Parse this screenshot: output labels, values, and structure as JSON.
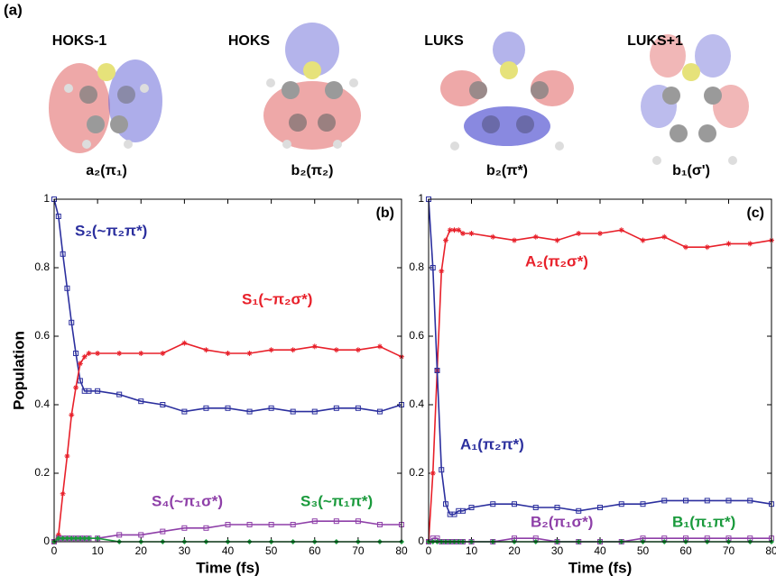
{
  "panel_a": {
    "label": "(a)",
    "orbitals": [
      {
        "name": "HOKS-1",
        "symmetry": "a₂(π₁)"
      },
      {
        "name": "HOKS",
        "symmetry": "b₂(π₂)"
      },
      {
        "name": "LUKS",
        "symmetry": "b₂(π*)"
      },
      {
        "name": "LUKS+1",
        "symmetry": "b₁(σ')"
      }
    ]
  },
  "chart_data": [
    {
      "type": "line",
      "panel_label": "(b)",
      "xlabel": "Time (fs)",
      "ylabel": "Population",
      "x": [
        0,
        1,
        2,
        3,
        4,
        5,
        6,
        7,
        8,
        10,
        15,
        20,
        25,
        30,
        35,
        40,
        45,
        50,
        55,
        60,
        65,
        70,
        75,
        80
      ],
      "xlim": [
        0,
        80
      ],
      "xticks": [
        0,
        10,
        20,
        30,
        40,
        50,
        60,
        70,
        80
      ],
      "ylim": [
        0,
        1
      ],
      "yticks": [
        0,
        0.2,
        0.4,
        0.6,
        0.8,
        1
      ],
      "series": [
        {
          "name": "S₂(~π₂π*)",
          "color": "#2b2f9e",
          "marker": "square",
          "values": [
            1.0,
            0.95,
            0.84,
            0.74,
            0.64,
            0.55,
            0.47,
            0.44,
            0.44,
            0.44,
            0.43,
            0.41,
            0.4,
            0.38,
            0.39,
            0.39,
            0.38,
            0.39,
            0.38,
            0.38,
            0.39,
            0.39,
            0.38,
            0.4
          ]
        },
        {
          "name": "S₁(~π₂σ*)",
          "color": "#e8202a",
          "marker": "asterisk",
          "values": [
            0,
            0.02,
            0.14,
            0.25,
            0.37,
            0.45,
            0.52,
            0.54,
            0.55,
            0.55,
            0.55,
            0.55,
            0.55,
            0.58,
            0.56,
            0.55,
            0.55,
            0.56,
            0.56,
            0.57,
            0.56,
            0.56,
            0.57,
            0.54
          ]
        },
        {
          "name": "S₄(~π₁σ*)",
          "color": "#8e3fa8",
          "marker": "square",
          "values": [
            0,
            0.01,
            0.01,
            0.01,
            0.01,
            0.01,
            0.01,
            0.01,
            0.01,
            0.01,
            0.02,
            0.02,
            0.03,
            0.04,
            0.04,
            0.05,
            0.05,
            0.05,
            0.05,
            0.06,
            0.06,
            0.06,
            0.05,
            0.05
          ]
        },
        {
          "name": "S₃(~π₁π*)",
          "color": "#1a9a3c",
          "marker": "diamond",
          "values": [
            0,
            0.01,
            0.01,
            0.01,
            0.01,
            0.01,
            0.01,
            0.01,
            0.01,
            0.01,
            0,
            0,
            0,
            0,
            0,
            0,
            0,
            0,
            0,
            0,
            0,
            0,
            0,
            0
          ]
        }
      ]
    },
    {
      "type": "line",
      "panel_label": "(c)",
      "xlabel": "Time (fs)",
      "x": [
        0,
        1,
        2,
        3,
        4,
        5,
        6,
        7,
        8,
        10,
        15,
        20,
        25,
        30,
        35,
        40,
        45,
        50,
        55,
        60,
        65,
        70,
        75,
        80
      ],
      "xlim": [
        0,
        80
      ],
      "xticks": [
        0,
        10,
        20,
        30,
        40,
        50,
        60,
        70,
        80
      ],
      "ylim": [
        0,
        1
      ],
      "yticks": [
        0,
        0.2,
        0.4,
        0.6,
        0.8,
        1
      ],
      "series": [
        {
          "name": "A₂(π₂σ*)",
          "color": "#e8202a",
          "marker": "asterisk",
          "values": [
            0,
            0.2,
            0.5,
            0.79,
            0.88,
            0.91,
            0.91,
            0.91,
            0.9,
            0.9,
            0.89,
            0.88,
            0.89,
            0.88,
            0.9,
            0.9,
            0.91,
            0.88,
            0.89,
            0.86,
            0.86,
            0.87,
            0.87,
            0.88
          ]
        },
        {
          "name": "A₁(π₂π*)",
          "color": "#2b2f9e",
          "marker": "square",
          "values": [
            1.0,
            0.8,
            0.5,
            0.21,
            0.11,
            0.08,
            0.08,
            0.09,
            0.09,
            0.1,
            0.11,
            0.11,
            0.1,
            0.1,
            0.09,
            0.1,
            0.11,
            0.11,
            0.12,
            0.12,
            0.12,
            0.12,
            0.12,
            0.11
          ]
        },
        {
          "name": "B₂(π₁σ*)",
          "color": "#8e3fa8",
          "marker": "square",
          "values": [
            0,
            0.01,
            0.01,
            0,
            0,
            0,
            0,
            0,
            0,
            0,
            0,
            0.01,
            0.01,
            0,
            0,
            0,
            0,
            0.01,
            0.01,
            0.01,
            0.01,
            0.01,
            0.01,
            0.01
          ]
        },
        {
          "name": "B₁(π₁π*)",
          "color": "#1a9a3c",
          "marker": "diamond",
          "values": [
            0,
            0,
            0,
            0,
            0,
            0,
            0,
            0,
            0,
            0,
            0,
            0,
            0,
            0,
            0,
            0,
            0,
            0,
            0,
            0,
            0,
            0,
            0,
            0
          ]
        }
      ]
    }
  ]
}
